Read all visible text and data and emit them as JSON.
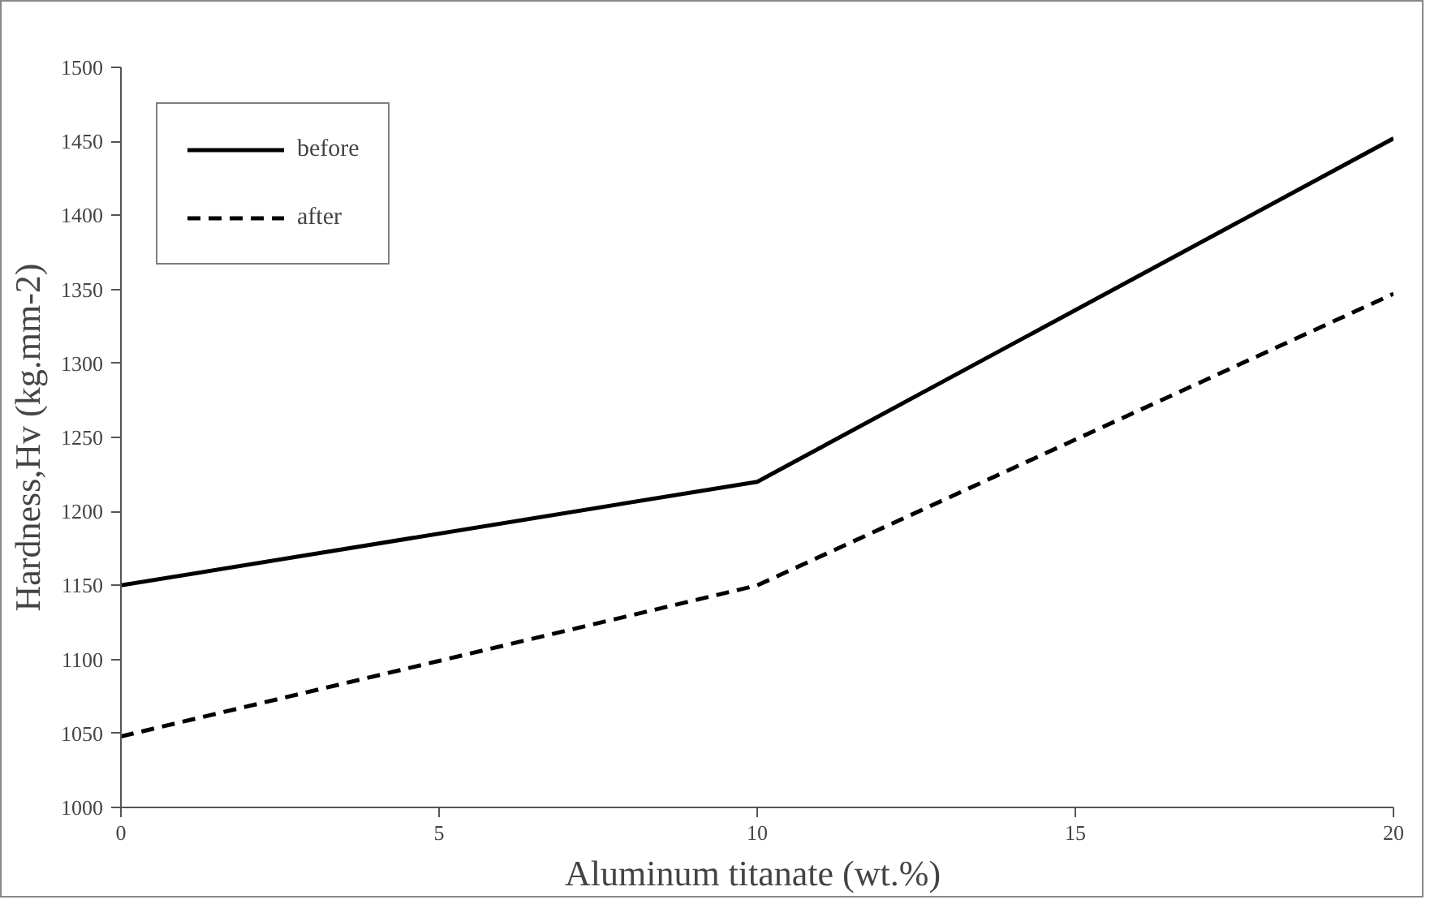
{
  "chart_data": {
    "type": "line",
    "xlabel": "Aluminum  titanate (wt.%)",
    "ylabel": "Hardness,Hv (kg.mm-2)",
    "x": [
      0,
      10,
      20
    ],
    "series": [
      {
        "name": "before",
        "color": "#000000",
        "values": [
          1150,
          1220,
          1452
        ],
        "line_style": "solid"
      },
      {
        "name": "after",
        "color": "#000000",
        "values": [
          1048,
          1150,
          1347
        ],
        "line_style": "dashed"
      }
    ],
    "xlim": [
      0,
      20
    ],
    "xticks": [
      0,
      5,
      10,
      15,
      20
    ],
    "ylim": [
      1000,
      1500
    ],
    "yticks": [
      1000,
      1050,
      1100,
      1150,
      1200,
      1250,
      1300,
      1350,
      1400,
      1450,
      1500
    ],
    "grid": false,
    "legend": "top left",
    "marker": "none"
  }
}
